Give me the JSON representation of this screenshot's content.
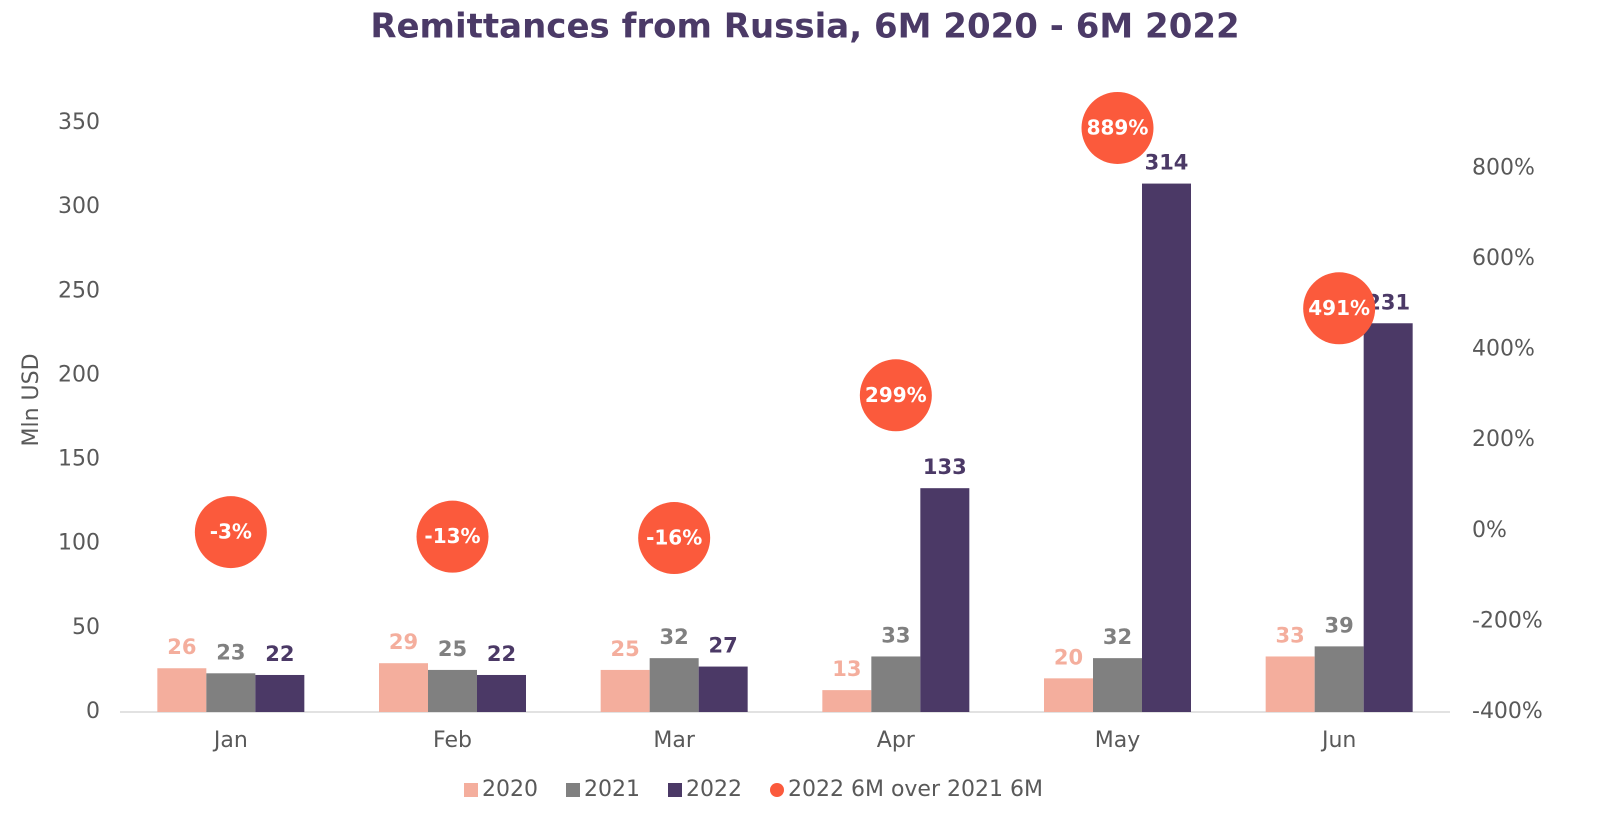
{
  "chart_data": {
    "type": "bar",
    "title": "Remittances from Russia, 6M 2020 - 6M 2022",
    "y_label": "Mln USD",
    "categories": [
      "Jan",
      "Feb",
      "Mar",
      "Apr",
      "May",
      "Jun"
    ],
    "series": [
      {
        "name": "2020",
        "color": "#f4ae9d",
        "values": [
          26,
          29,
          25,
          13,
          20,
          33
        ]
      },
      {
        "name": "2021",
        "color": "#808080",
        "values": [
          23,
          25,
          32,
          33,
          32,
          39
        ]
      },
      {
        "name": "2022",
        "color": "#4b3966",
        "values": [
          22,
          22,
          27,
          133,
          314,
          231
        ]
      },
      {
        "name": "2022 6M over 2021 6M",
        "type": "scatter",
        "axis": "y2",
        "color": "#fb5a3c",
        "values": [
          -3,
          -13,
          -16,
          299,
          889,
          491
        ],
        "value_labels": [
          "-3%",
          "-13%",
          "-16%",
          "299%",
          "889%",
          "491%"
        ]
      }
    ],
    "ylim": [
      0,
      350
    ],
    "yticks": [
      0,
      50,
      100,
      150,
      200,
      250,
      300,
      350
    ],
    "y2lim": [
      -400,
      900
    ],
    "y2ticks": [
      {
        "value": -400,
        "label": "-400%"
      },
      {
        "value": -200,
        "label": "-200%"
      },
      {
        "value": 0,
        "label": "0%"
      },
      {
        "value": 200,
        "label": "200%"
      },
      {
        "value": 400,
        "label": "400%"
      },
      {
        "value": 600,
        "label": "600%"
      },
      {
        "value": 800,
        "label": "800%"
      }
    ],
    "grid": false,
    "legend": "bottom"
  }
}
